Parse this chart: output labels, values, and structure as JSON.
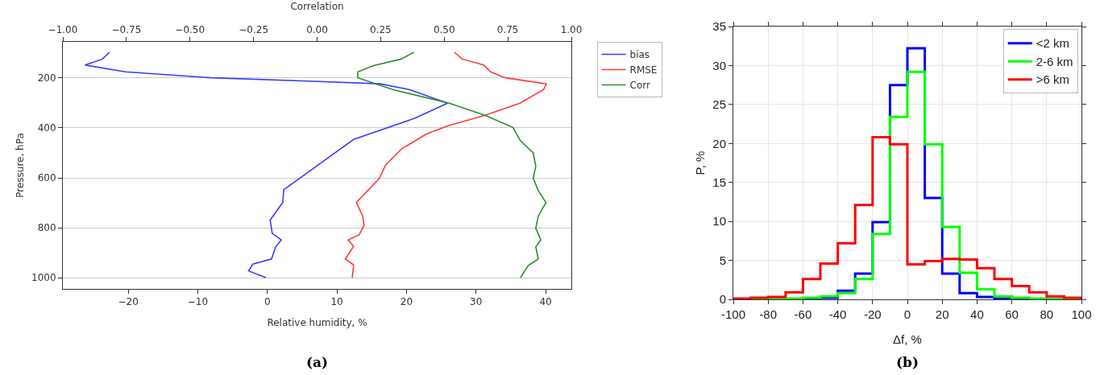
{
  "chart_data": [
    {
      "type": "line",
      "xlabel": "Relative humidity, %",
      "ylabel": "Pressure, hPa",
      "x2label": "Correlation",
      "xlim": [
        -29.4,
        43.7
      ],
      "xticks": [
        {
          "value": -20,
          "label": "−20"
        },
        {
          "value": -10,
          "label": "−10"
        },
        0,
        10,
        20,
        30,
        40
      ],
      "x2lim": [
        -1,
        1
      ],
      "x2ticks": [
        {
          "value": -1,
          "label": "−1.00"
        },
        {
          "value": -0.75,
          "label": "−0.75"
        },
        {
          "value": -0.5,
          "label": "−0.50"
        },
        {
          "value": -0.25,
          "label": "−0.25"
        },
        {
          "value": 0,
          "label": "0.00"
        },
        {
          "value": 0.25,
          "label": "0.25"
        },
        {
          "value": 0.5,
          "label": "0.50"
        },
        {
          "value": 0.75,
          "label": "0.75"
        },
        {
          "value": 1,
          "label": "1.00"
        }
      ],
      "ylim": [
        1045,
        55
      ],
      "yticks": [
        200,
        400,
        600,
        800,
        1000
      ],
      "grid": "y",
      "legend": "right",
      "annotations": [
        "(a)"
      ],
      "series": [
        {
          "name": "bias",
          "color": "#3a3aff",
          "x": [
            -22.7,
            -23.7,
            -26.2,
            -20.4,
            -8.1,
            6.6,
            16.2,
            20.5,
            25.9,
            21.3,
            12.4,
            7.8,
            2.35,
            2.2,
            0.4,
            0.7,
            2.0,
            1.2,
            0.6,
            -2.1,
            -2.7,
            -0.2
          ],
          "values": [
            97,
            124,
            148,
            175,
            199,
            213,
            223,
            247,
            301,
            360,
            446,
            538,
            648,
            699,
            769,
            823,
            849,
            876,
            925,
            946,
            973,
            1000
          ]
        },
        {
          "name": "RMSE",
          "color": "#ff3a3a",
          "x": [
            26.9,
            28.0,
            31.1,
            32.1,
            34.2,
            40.1,
            39.7,
            36.3,
            31.3,
            25.9,
            22.8,
            19.3,
            17.0,
            16.1,
            12.8,
            13.7,
            13.9,
            13.2,
            11.6,
            12.4,
            11.2,
            12.4,
            12.2
          ],
          "values": [
            97,
            124,
            148,
            175,
            199,
            223,
            247,
            301,
            349,
            392,
            425,
            484,
            548,
            602,
            699,
            753,
            791,
            828,
            849,
            874,
            925,
            949,
            1000
          ]
        },
        {
          "name": "Corr",
          "color": "#2e8b2e",
          "axis": "x2",
          "x": [
            0.38,
            0.33,
            0.22,
            0.16,
            0.16,
            0.3,
            0.52,
            0.66,
            0.77,
            0.8,
            0.85,
            0.86,
            0.85,
            0.87,
            0.9,
            0.87,
            0.86,
            0.88,
            0.86,
            0.87,
            0.83,
            0.8
          ],
          "values": [
            97,
            124,
            151,
            175,
            199,
            247,
            301,
            349,
            398,
            452,
            500,
            554,
            602,
            651,
            699,
            753,
            802,
            849,
            876,
            925,
            952,
            1000
          ]
        }
      ]
    },
    {
      "type": "histogram",
      "xlabel": "Δf, %",
      "ylabel": "P, %",
      "xlim": [
        -100,
        100
      ],
      "xticks": [
        -100,
        -80,
        -60,
        -40,
        -20,
        0,
        20,
        40,
        60,
        80,
        100
      ],
      "ylim": [
        0,
        35
      ],
      "yticks": [
        0,
        5,
        10,
        15,
        20,
        25,
        30,
        35
      ],
      "grid": true,
      "legend": "top right",
      "annotations": [
        "(b)"
      ],
      "bins": [
        -100,
        -90,
        -80,
        -70,
        -60,
        -50,
        -40,
        -30,
        -20,
        -10,
        0,
        10,
        20,
        30,
        40,
        50,
        60,
        70,
        80,
        90,
        100
      ],
      "series": [
        {
          "name": "<2 km",
          "color": "#0000ff",
          "values": [
            0,
            0,
            0,
            0,
            0.1,
            0.2,
            1.1,
            3.3,
            9.9,
            27.5,
            32.2,
            13.0,
            3.3,
            0.8,
            0.3,
            0.1,
            0,
            0,
            0,
            0
          ]
        },
        {
          "name": "2-6 km",
          "color": "#00ff00",
          "values": [
            0,
            0,
            0,
            0.1,
            0.2,
            0.4,
            0.8,
            2.6,
            8.4,
            23.4,
            29.2,
            19.9,
            9.3,
            3.4,
            1.3,
            0.4,
            0.2,
            0.1,
            0,
            0
          ]
        },
        {
          "name": ">6 km",
          "color": "#ff0000",
          "values": [
            0.1,
            0.2,
            0.3,
            0.9,
            2.6,
            4.6,
            7.2,
            12.1,
            20.8,
            19.9,
            4.5,
            4.9,
            5.2,
            5.1,
            4.0,
            2.6,
            1.7,
            0.9,
            0.4,
            0.2
          ]
        }
      ]
    }
  ]
}
